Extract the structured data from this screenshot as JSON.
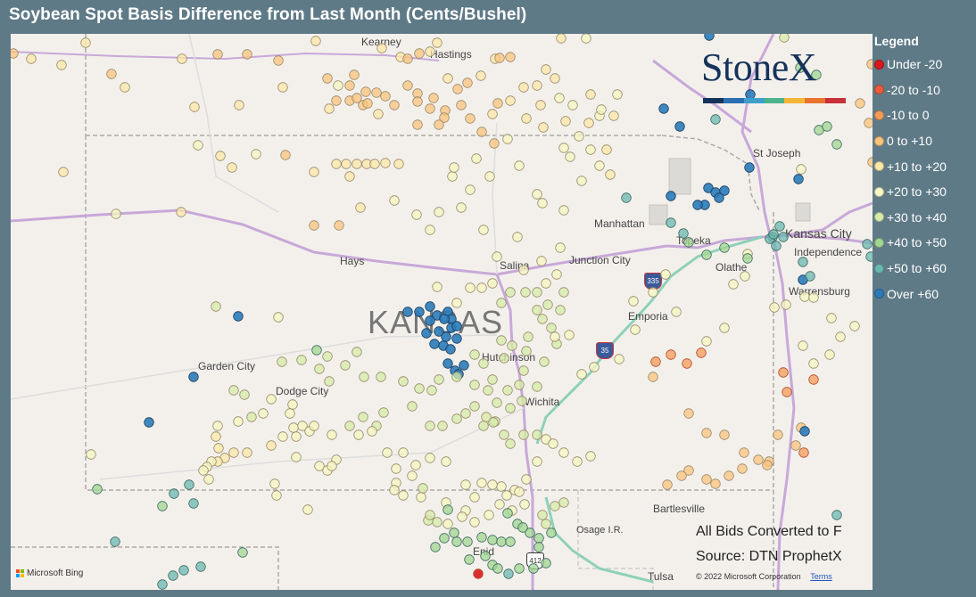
{
  "title": "Soybean Spot Basis Difference from Last Month (Cents/Bushel)",
  "state_label": "KANSAS",
  "cities": [
    "Kearney",
    "Hastings",
    "St Joseph",
    "Manhattan",
    "Topeka",
    "Kansas City",
    "Independence",
    "Olathe",
    "Warrensburg",
    "Hays",
    "Salina",
    "Junction City",
    "Emporia",
    "Hutchinson",
    "Garden City",
    "Dodge City",
    "Wichita",
    "Bartlesville",
    "Osage I.R.",
    "Enid",
    "Tulsa"
  ],
  "shields": [
    "335",
    "35",
    "412"
  ],
  "legend": {
    "title": "Legend",
    "items": [
      {
        "label": "Under -20",
        "color": "#d7191c"
      },
      {
        "label": "-20 to -10",
        "color": "#ec5c3b"
      },
      {
        "label": "-10 to 0",
        "color": "#f39c5a"
      },
      {
        "label": "0 to +10",
        "color": "#fbc47e"
      },
      {
        "label": "+10 to +20",
        "color": "#fde8a8"
      },
      {
        "label": "+20 to +30",
        "color": "#f6f7c2"
      },
      {
        "label": "+30 to +40",
        "color": "#d6eca8"
      },
      {
        "label": "+40 to +50",
        "color": "#a1d792"
      },
      {
        "label": "+50 to +60",
        "color": "#6bb7b0"
      },
      {
        "label": "Over +60",
        "color": "#2b7bba"
      }
    ]
  },
  "logo": {
    "text": "StoneX",
    "bar_colors": [
      "#15335a",
      "#2c6fb3",
      "#3ea0c9",
      "#4db38a",
      "#f4b637",
      "#e8742f",
      "#c8303a"
    ]
  },
  "notes": {
    "converted": "All Bids Converted to F",
    "source": "Source: DTN ProphetX"
  },
  "attribution": {
    "bing": "Microsoft Bing",
    "copyright": "© 2022 Microsoft Corporation",
    "terms": "Terms"
  }
}
